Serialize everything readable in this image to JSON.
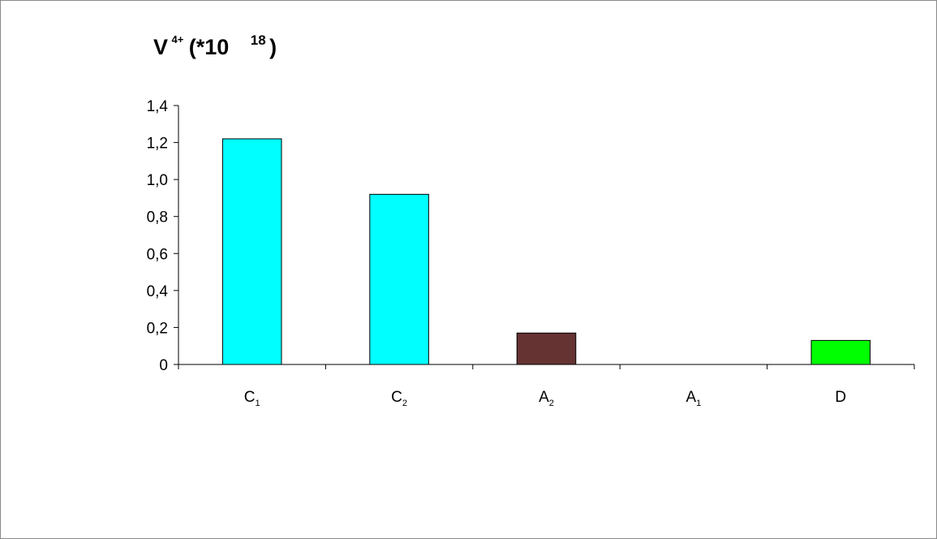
{
  "chart_data": {
    "type": "bar",
    "title": {
      "base": "V",
      "sup": "4+",
      "mid": "(*10",
      "sup2": "18",
      "end": ")"
    },
    "categories": [
      {
        "base": "C",
        "sub": "1"
      },
      {
        "base": "C",
        "sub": "2"
      },
      {
        "base": "A",
        "sub": "2"
      },
      {
        "base": "A",
        "sub": "1"
      },
      {
        "base": "D",
        "sub": ""
      }
    ],
    "values": [
      1.22,
      0.92,
      0.17,
      0,
      0.13
    ],
    "colors": [
      "#00ffff",
      "#00ffff",
      "#663333",
      "#00ffff",
      "#00ff00"
    ],
    "ylim": [
      0,
      1.4
    ],
    "yticks": [
      0,
      0.2,
      0.4,
      0.6,
      0.8,
      1.0,
      1.2,
      1.4
    ],
    "ytick_labels": [
      "0",
      "0,2",
      "0,4",
      "0,6",
      "0,8",
      "1,0",
      "1,2",
      "1,4"
    ],
    "grid": false,
    "legend": "none"
  }
}
